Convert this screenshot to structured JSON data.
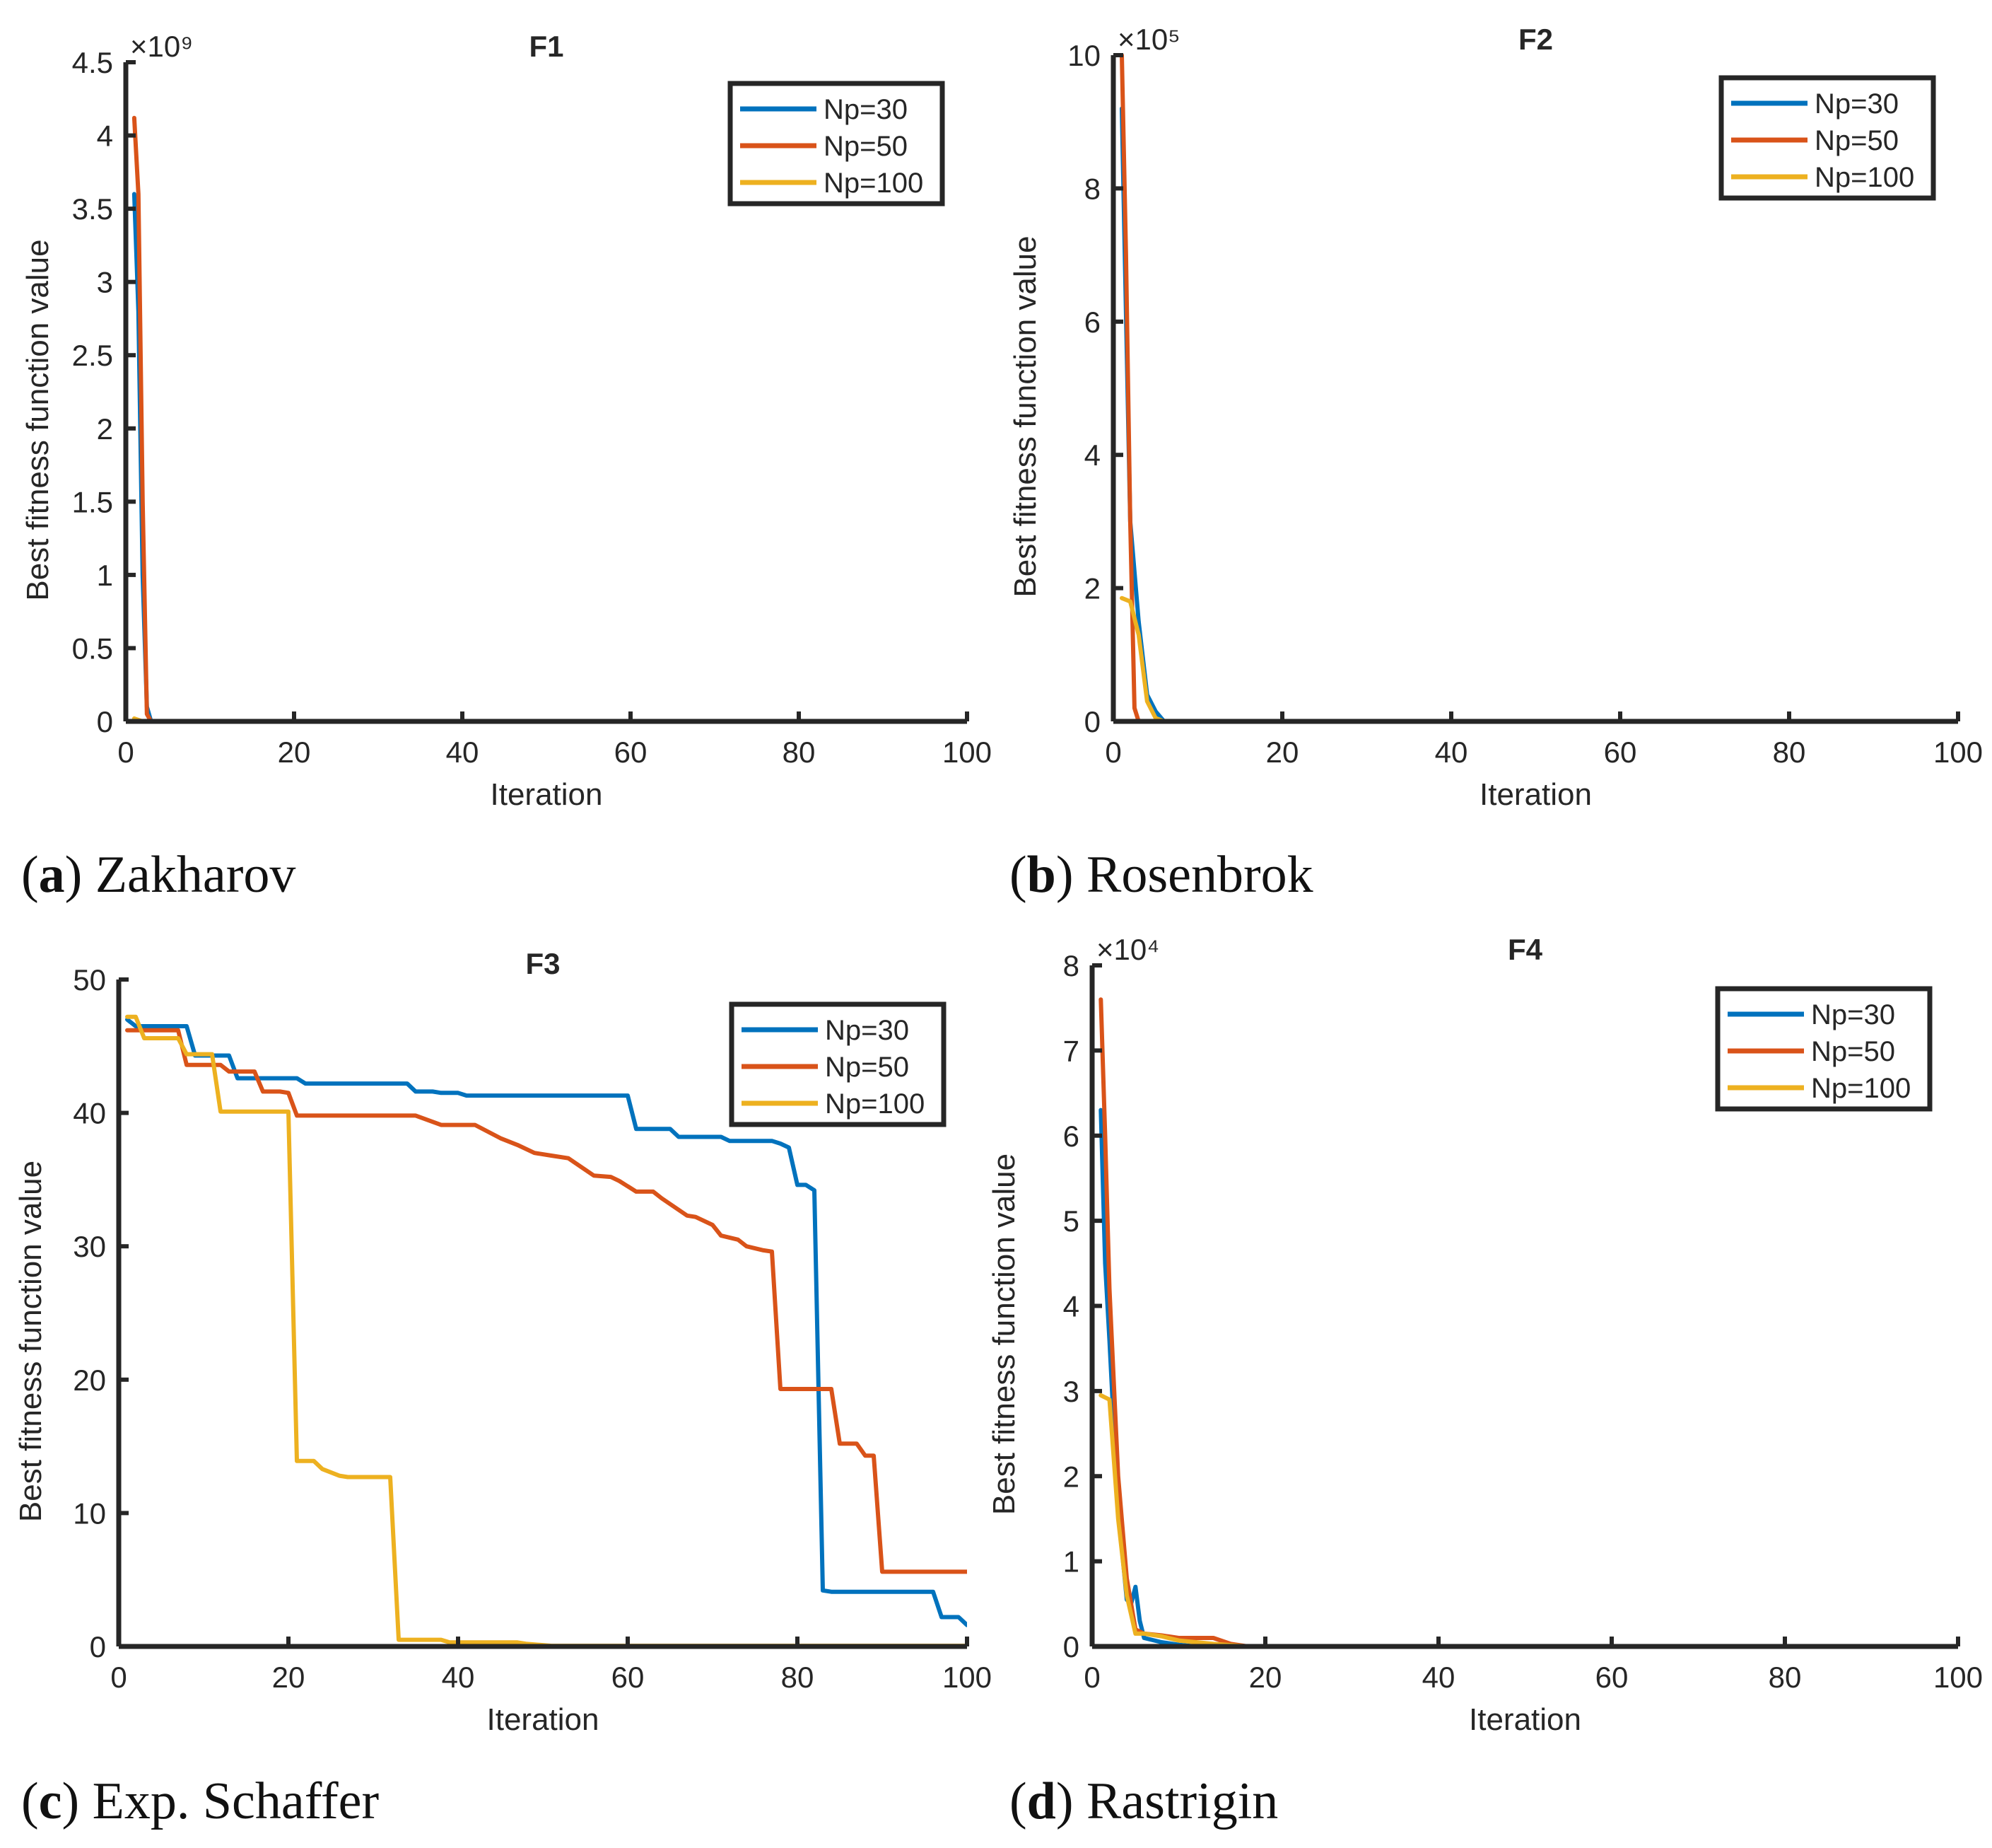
{
  "colors": {
    "np30": "#0072BD",
    "np50": "#D95319",
    "np100": "#EDB120",
    "axis": "#262626"
  },
  "panels": [
    {
      "letter": "a",
      "caption": "Zakharov"
    },
    {
      "letter": "b",
      "caption": "Rosenbrok"
    },
    {
      "letter": "c",
      "caption": "Exp. Schaffer"
    },
    {
      "letter": "d",
      "caption": "Rastrigin"
    }
  ],
  "chart_data": [
    {
      "type": "line",
      "title": "F1",
      "xlabel": "Iteration",
      "ylabel": "Best fitness function value",
      "exponent_label": "×10⁹",
      "scale": 1000000000,
      "xlim": [
        0,
        100
      ],
      "ylim": [
        0,
        4.5
      ],
      "xticks": [
        0,
        20,
        40,
        60,
        80,
        100
      ],
      "yticks": [
        0,
        0.5,
        1,
        1.5,
        2,
        2.5,
        3,
        3.5,
        4,
        4.5
      ],
      "legend_placement": "top-right",
      "grid": false,
      "series": [
        {
          "name": "Np=30",
          "color_key": "np30",
          "x": [
            1,
            1.5,
            2,
            2.5,
            3,
            100
          ],
          "y": [
            3.6,
            2.8,
            1.0,
            0.1,
            0.0,
            0.0
          ]
        },
        {
          "name": "Np=50",
          "color_key": "np50",
          "x": [
            1,
            1.5,
            2,
            2.5,
            3,
            100
          ],
          "y": [
            4.12,
            3.6,
            1.5,
            0.05,
            0.0,
            0.0
          ]
        },
        {
          "name": "Np=100",
          "color_key": "np100",
          "x": [
            1,
            2,
            3,
            100
          ],
          "y": [
            0.02,
            0.0,
            0.0,
            0.0
          ]
        }
      ]
    },
    {
      "type": "line",
      "title": "F2",
      "xlabel": "Iteration",
      "ylabel": "Best fitness function value",
      "exponent_label": "×10⁵",
      "scale": 100000,
      "xlim": [
        0,
        100
      ],
      "ylim": [
        0,
        10
      ],
      "xticks": [
        0,
        20,
        40,
        60,
        80,
        100
      ],
      "yticks": [
        0,
        2,
        4,
        6,
        8,
        10
      ],
      "legend_placement": "top-right",
      "grid": false,
      "series": [
        {
          "name": "Np=30",
          "color_key": "np30",
          "x": [
            1,
            2,
            3,
            4,
            5,
            6,
            100
          ],
          "y": [
            9.2,
            3.0,
            1.5,
            0.4,
            0.15,
            0.0,
            0.0
          ]
        },
        {
          "name": "Np=50",
          "color_key": "np50",
          "x": [
            1,
            1.5,
            2,
            2.5,
            3,
            100
          ],
          "y": [
            10.0,
            7.0,
            3.0,
            0.2,
            0.0,
            0.0
          ]
        },
        {
          "name": "Np=100",
          "color_key": "np100",
          "x": [
            1,
            2,
            3,
            4,
            5,
            6,
            100
          ],
          "y": [
            1.85,
            1.8,
            1.3,
            0.3,
            0.05,
            0.0,
            0.0
          ]
        }
      ]
    },
    {
      "type": "line",
      "title": "F3",
      "xlabel": "Iteration",
      "ylabel": "Best fitness function value",
      "exponent_label": "",
      "scale": 1,
      "xlim": [
        0,
        100
      ],
      "ylim": [
        0,
        50
      ],
      "xticks": [
        0,
        20,
        40,
        60,
        80,
        100
      ],
      "yticks": [
        0,
        10,
        20,
        30,
        40,
        50
      ],
      "legend_placement": "top-right",
      "grid": false,
      "series": [
        {
          "name": "Np=30",
          "color_key": "np30",
          "x": [
            1,
            2,
            8,
            9,
            13,
            14,
            21,
            22,
            34,
            35,
            37,
            38,
            40,
            41,
            60,
            61,
            65,
            66,
            71,
            72,
            77,
            78,
            79,
            80,
            81,
            82,
            83,
            84,
            96,
            97,
            99,
            100
          ],
          "y": [
            47,
            46.5,
            46.5,
            44.3,
            44.3,
            42.6,
            42.6,
            42.2,
            42.2,
            41.6,
            41.6,
            41.5,
            41.5,
            41.3,
            41.3,
            38.8,
            38.8,
            38.2,
            38.2,
            37.9,
            37.9,
            37.7,
            37.4,
            34.6,
            34.6,
            34.2,
            4.2,
            4.1,
            4.1,
            2.2,
            2.2,
            1.6
          ]
        },
        {
          "name": "Np=50",
          "color_key": "np50",
          "x": [
            1,
            7,
            8,
            12,
            13,
            16,
            17,
            19,
            20,
            21,
            35,
            38,
            42,
            45,
            47,
            49,
            51,
            53,
            56,
            58,
            59,
            61,
            63,
            64,
            67,
            68,
            70,
            71,
            73,
            74,
            76,
            77,
            78,
            79,
            80,
            81,
            84,
            85,
            87,
            88,
            89,
            90,
            91,
            99,
            100
          ],
          "y": [
            46.2,
            46.2,
            43.6,
            43.6,
            43.1,
            43.1,
            41.6,
            41.6,
            41.5,
            39.8,
            39.8,
            39.1,
            39.1,
            38.1,
            37.6,
            37.0,
            36.8,
            36.6,
            35.3,
            35.2,
            34.9,
            34.1,
            34.1,
            33.6,
            32.3,
            32.2,
            31.6,
            30.8,
            30.5,
            30.0,
            29.7,
            29.6,
            19.3,
            19.3,
            19.3,
            19.3,
            19.3,
            15.2,
            15.2,
            14.3,
            14.3,
            5.6,
            5.6,
            5.6,
            5.6
          ]
        },
        {
          "name": "Np=100",
          "color_key": "np100",
          "x": [
            1,
            2,
            3,
            7,
            8,
            11,
            12,
            20,
            21,
            23,
            24,
            26,
            27,
            32,
            33,
            34,
            38,
            39,
            47,
            48,
            50,
            51,
            100
          ],
          "y": [
            47.2,
            47.2,
            45.6,
            45.6,
            44.4,
            44.4,
            40.1,
            40.1,
            13.9,
            13.9,
            13.3,
            12.8,
            12.7,
            12.7,
            0.5,
            0.5,
            0.5,
            0.3,
            0.3,
            0.2,
            0.1,
            0.05,
            0.05
          ]
        }
      ]
    },
    {
      "type": "line",
      "title": "F4",
      "xlabel": "Iteration",
      "ylabel": "Best fitness function value",
      "exponent_label": "×10⁴",
      "scale": 10000,
      "xlim": [
        0,
        100
      ],
      "ylim": [
        0,
        8
      ],
      "xticks": [
        0,
        20,
        40,
        60,
        80,
        100
      ],
      "yticks": [
        0,
        1,
        2,
        3,
        4,
        5,
        6,
        7,
        8
      ],
      "legend_placement": "top-right",
      "grid": false,
      "series": [
        {
          "name": "Np=30",
          "color_key": "np30",
          "x": [
            1,
            1.5,
            2,
            3,
            4,
            4.5,
            5,
            5.5,
            6,
            8,
            10,
            12,
            100
          ],
          "y": [
            6.3,
            4.5,
            3.6,
            1.6,
            0.55,
            0.5,
            0.7,
            0.3,
            0.1,
            0.05,
            0.02,
            0.0,
            0.0
          ]
        },
        {
          "name": "Np=50",
          "color_key": "np50",
          "x": [
            1,
            1.5,
            2,
            3,
            4,
            5,
            6,
            8,
            10,
            14,
            16,
            18,
            100
          ],
          "y": [
            7.6,
            6.0,
            4.2,
            2.0,
            0.8,
            0.2,
            0.15,
            0.13,
            0.1,
            0.1,
            0.03,
            0.0,
            0.0
          ]
        },
        {
          "name": "Np=100",
          "color_key": "np100",
          "x": [
            1,
            2,
            3,
            4,
            5,
            6,
            8,
            10,
            12,
            14,
            18,
            100
          ],
          "y": [
            2.95,
            2.9,
            1.5,
            0.6,
            0.15,
            0.15,
            0.12,
            0.07,
            0.05,
            0.03,
            0.0,
            0.0
          ]
        }
      ]
    }
  ]
}
